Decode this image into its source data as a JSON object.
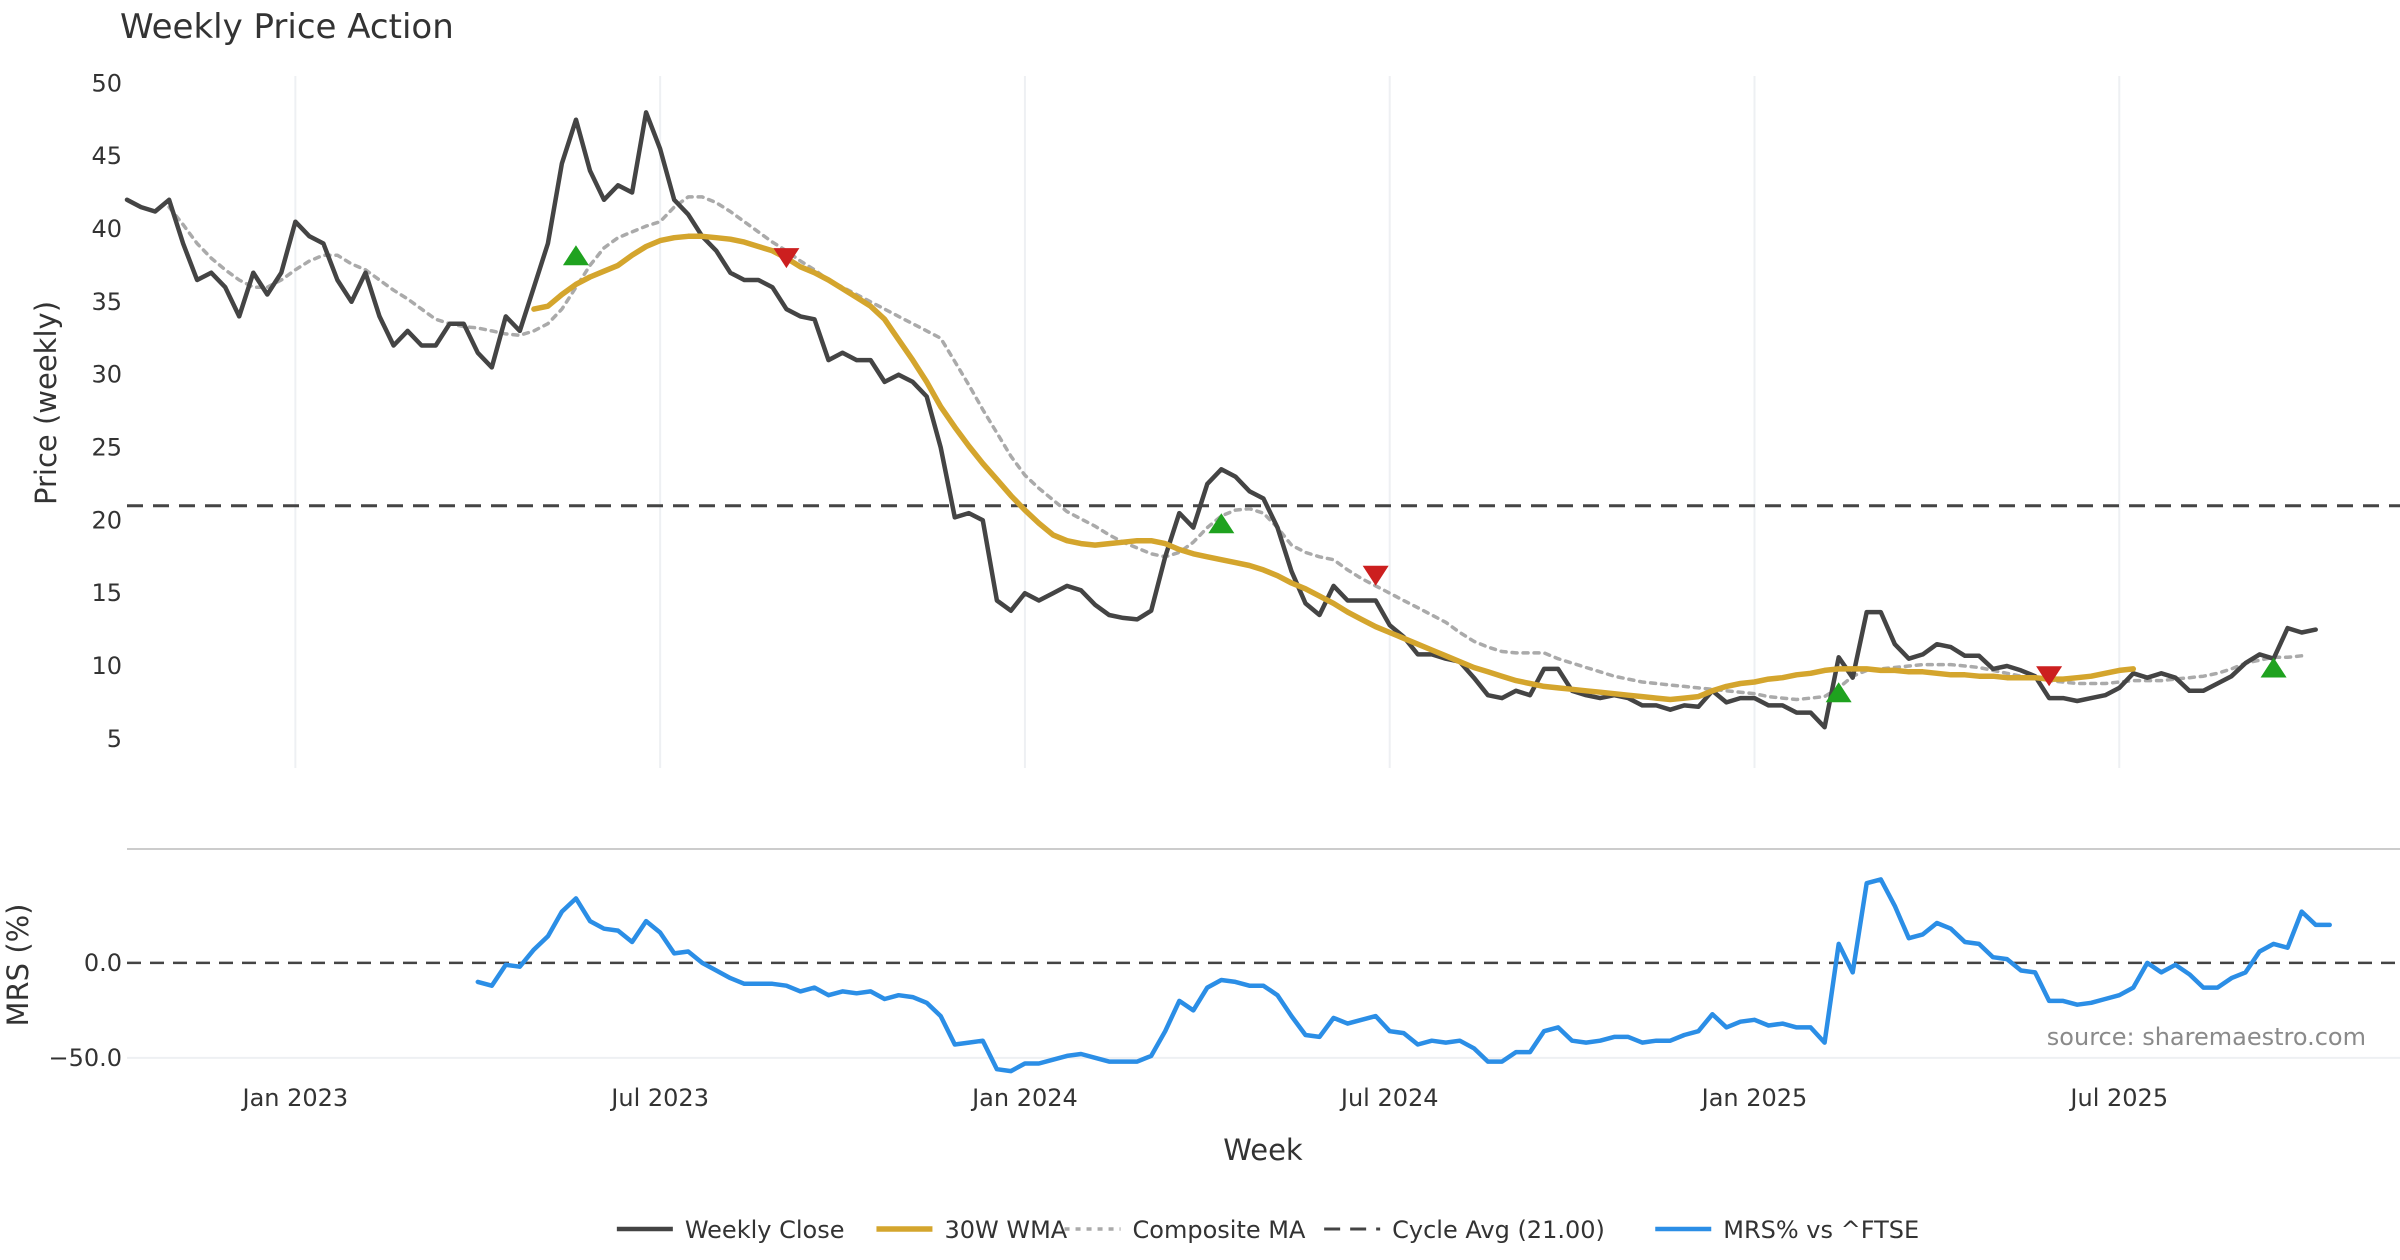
{
  "colors": {
    "close": "#444444",
    "wma": "#d4a52d",
    "composite": "#aaaaaa",
    "cycle": "#444444",
    "mrs": "#2b8ee6",
    "buy": "#1fa21f",
    "sell": "#cc1f1f",
    "grid": "#eef0f3"
  },
  "chart_data": [
    {
      "type": "line",
      "title": "Weekly Price Action",
      "ylabel": "Price (weekly)",
      "xlabel": "Week",
      "ylim": [
        3,
        50.5
      ],
      "yticks": [
        5,
        10,
        15,
        20,
        25,
        30,
        35,
        40,
        45,
        50
      ],
      "x_tick_labels": [
        "Jan 2023",
        "Jul 2023",
        "Jan 2024",
        "Jul 2024",
        "Jan 2025",
        "Jul 2025"
      ],
      "x_ticks_week": [
        12,
        38,
        64,
        90,
        116,
        142
      ],
      "x_range_week": [
        0,
        158
      ],
      "cycle_avg": 21.0,
      "series": [
        {
          "name": "Weekly Close",
          "x_start_week": 0,
          "values": [
            42,
            41.5,
            41.2,
            42,
            39,
            36.5,
            37,
            36,
            34,
            37,
            35.5,
            37,
            40.5,
            39.5,
            39,
            36.5,
            35,
            37,
            34,
            32,
            33,
            32,
            32,
            33.5,
            33.5,
            31.5,
            30.5,
            34,
            33,
            36,
            39,
            44.5,
            47.5,
            44,
            42,
            43,
            42.5,
            48,
            45.5,
            42,
            41,
            39.5,
            38.5,
            37,
            36.5,
            36.5,
            36,
            34.5,
            34,
            33.8,
            31,
            31.5,
            31,
            31,
            29.5,
            30,
            29.5,
            28.5,
            25,
            20.2,
            20.5,
            20,
            14.5,
            13.8,
            15,
            14.5,
            15,
            15.5,
            15.2,
            14.2,
            13.5,
            13.3,
            13.2,
            13.8,
            17.5,
            20.5,
            19.5,
            22.5,
            23.5,
            23,
            22,
            21.5,
            19.5,
            16.5,
            14.3,
            13.5,
            15.5,
            14.5,
            14.5,
            14.5,
            12.8,
            12,
            10.8,
            10.8,
            10.5,
            10.3,
            9.2,
            8,
            7.8,
            8.3,
            8,
            9.8,
            9.8,
            8.3,
            8,
            7.8,
            8,
            7.8,
            7.3,
            7.3,
            7,
            7.3,
            7.2,
            8.3,
            7.5,
            7.8,
            7.8,
            7.3,
            7.3,
            6.8,
            6.8,
            5.8,
            10.6,
            9.2,
            13.7,
            13.7,
            11.5,
            10.5,
            10.8,
            11.5,
            11.3,
            10.7,
            10.7,
            9.8,
            10,
            9.7,
            9.3,
            7.8,
            7.8,
            7.6,
            7.8,
            8,
            8.5,
            9.5,
            9.2,
            9.5,
            9.2,
            8.3,
            8.3,
            8.8,
            9.3,
            10.2,
            10.8,
            10.5,
            12.6,
            12.3,
            12.5
          ]
        },
        {
          "name": "30W WMA",
          "x_start_week": 29,
          "values": [
            34.5,
            34.7,
            35.5,
            36.2,
            36.7,
            37.1,
            37.5,
            38.2,
            38.8,
            39.2,
            39.4,
            39.5,
            39.5,
            39.4,
            39.3,
            39.1,
            38.8,
            38.5,
            38,
            37.4,
            37,
            36.5,
            35.9,
            35.3,
            34.7,
            33.8,
            32.4,
            31,
            29.5,
            27.8,
            26.4,
            25.1,
            23.9,
            22.8,
            21.7,
            20.7,
            19.8,
            19,
            18.6,
            18.4,
            18.3,
            18.4,
            18.5,
            18.6,
            18.6,
            18.4,
            18,
            17.7,
            17.5,
            17.3,
            17.1,
            16.9,
            16.6,
            16.2,
            15.7,
            15.3,
            14.8,
            14.3,
            13.7,
            13.2,
            12.7,
            12.3,
            11.9,
            11.5,
            11.1,
            10.7,
            10.3,
            9.9,
            9.6,
            9.3,
            9,
            8.8,
            8.6,
            8.5,
            8.4,
            8.3,
            8.2,
            8.1,
            8,
            7.9,
            7.8,
            7.7,
            7.8,
            7.9,
            8.3,
            8.6,
            8.8,
            8.9,
            9.1,
            9.2,
            9.4,
            9.5,
            9.7,
            9.8,
            9.8,
            9.8,
            9.7,
            9.7,
            9.6,
            9.6,
            9.5,
            9.4,
            9.4,
            9.3,
            9.3,
            9.2,
            9.2,
            9.2,
            9.1,
            9.1,
            9.2,
            9.3,
            9.5,
            9.7,
            9.8
          ]
        },
        {
          "name": "Composite MA",
          "x_start_week": 3,
          "values": [
            41.5,
            40.3,
            39,
            38,
            37.2,
            36.5,
            36,
            36,
            36.5,
            37.2,
            37.8,
            38.2,
            38.2,
            37.6,
            37.2,
            36.5,
            35.8,
            35.2,
            34.5,
            33.8,
            33.5,
            33.3,
            33.2,
            33,
            32.8,
            32.7,
            33,
            33.5,
            34.5,
            36,
            37.5,
            38.7,
            39.4,
            39.8,
            40.2,
            40.5,
            41.5,
            42.2,
            42.2,
            41.8,
            41.2,
            40.5,
            39.8,
            39.1,
            38.5,
            37.8,
            37.2,
            36.5,
            36,
            35.5,
            35,
            34.5,
            34,
            33.5,
            33,
            32.5,
            30.9,
            29.3,
            27.6,
            26,
            24.4,
            23.1,
            22.2,
            21.4,
            20.6,
            20.1,
            19.6,
            19,
            18.5,
            18.1,
            17.7,
            17.5,
            17.8,
            18.5,
            19.5,
            20.3,
            20.7,
            20.8,
            20.5,
            19.5,
            18.3,
            17.8,
            17.5,
            17.3,
            16.6,
            16,
            15.5,
            15,
            14.5,
            14,
            13.5,
            13,
            12.3,
            11.7,
            11.3,
            11,
            10.9,
            10.9,
            10.9,
            10.5,
            10.2,
            9.9,
            9.6,
            9.3,
            9.1,
            8.9,
            8.8,
            8.7,
            8.6,
            8.5,
            8.4,
            8.3,
            8.2,
            8.1,
            7.9,
            7.8,
            7.7,
            7.8,
            7.9,
            8.5,
            9.3,
            9.7,
            9.8,
            9.9,
            10,
            10.1,
            10.1,
            10.1,
            10,
            9.9,
            9.7,
            9.5,
            9.3,
            9.2,
            9,
            8.9,
            8.8,
            8.8,
            8.8,
            8.9,
            9,
            9,
            9,
            9.1,
            9.2,
            9.3,
            9.5,
            9.8,
            10.2,
            10.4,
            10.6,
            10.6,
            10.7
          ]
        }
      ],
      "markers": [
        {
          "type": "buy",
          "week": 32,
          "price": 38.2
        },
        {
          "type": "sell",
          "week": 47,
          "price": 38.0
        },
        {
          "type": "buy",
          "week": 78,
          "price": 19.8
        },
        {
          "type": "sell",
          "week": 89,
          "price": 16.2
        },
        {
          "type": "buy",
          "week": 122,
          "price": 8.2
        },
        {
          "type": "sell",
          "week": 137,
          "price": 9.3
        },
        {
          "type": "buy",
          "week": 153,
          "price": 9.9
        }
      ]
    },
    {
      "type": "line",
      "ylabel": "MRS (%)",
      "ylim": [
        -58,
        60
      ],
      "yticks": [
        0,
        -50
      ],
      "ytick_labels": [
        "0.0",
        "−50.0"
      ],
      "zero_line": 0,
      "source_text": "source: sharemaestro.com",
      "series": [
        {
          "name": "MRS% vs ^FTSE",
          "x_start_week": 25,
          "values": [
            -10,
            -12,
            -1,
            -2,
            7,
            14,
            27,
            34,
            22,
            18,
            17,
            11,
            22,
            16,
            5,
            6,
            0,
            -4,
            -8,
            -11,
            -11,
            -11,
            -12,
            -15,
            -13,
            -17,
            -15,
            -16,
            -15,
            -19,
            -17,
            -18,
            -21,
            -28,
            -43,
            -42,
            -41,
            -56,
            -57,
            -53,
            -53,
            -51,
            -49,
            -48,
            -50,
            -52,
            -52,
            -52,
            -49,
            -36,
            -20,
            -25,
            -13,
            -9,
            -10,
            -12,
            -12,
            -17,
            -28,
            -38,
            -39,
            -29,
            -32,
            -30,
            -28,
            -36,
            -37,
            -43,
            -41,
            -42,
            -41,
            -45,
            -52,
            -52,
            -47,
            -47,
            -36,
            -34,
            -41,
            -42,
            -41,
            -39,
            -39,
            -42,
            -41,
            -41,
            -38,
            -36,
            -27,
            -34,
            -31,
            -30,
            -33,
            -32,
            -34,
            -34,
            -42,
            10,
            -5,
            42,
            44,
            30,
            13,
            15,
            21,
            18,
            11,
            10,
            3,
            2,
            -4,
            -5,
            -20,
            -20,
            -22,
            -21,
            -19,
            -17,
            -13,
            0,
            -5,
            -1,
            -6,
            -13,
            -13,
            -8,
            -5,
            6,
            10,
            8,
            27,
            20,
            20
          ]
        }
      ]
    }
  ]
}
